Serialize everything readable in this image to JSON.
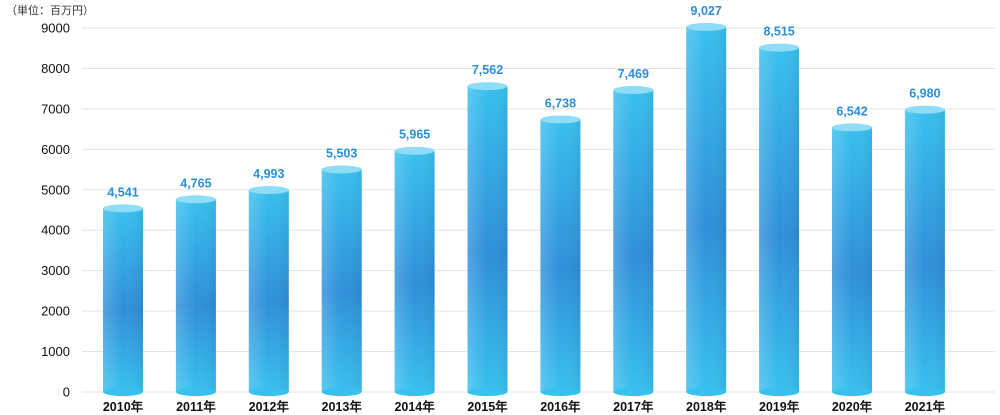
{
  "unit_label": "（単位：百万円）",
  "colors": {
    "bar_dark": "#2f8fd9",
    "bar_light": "#38c0ee",
    "bar_top": "#8fdcf6",
    "value_label": "#2b8fd6",
    "grid": "#e3e3e3",
    "axis_text": "#111111"
  },
  "chart_data": {
    "type": "bar",
    "categories": [
      "2010年",
      "2011年",
      "2012年",
      "2013年",
      "2014年",
      "2015年",
      "2016年",
      "2017年",
      "2018年",
      "2019年",
      "2020年",
      "2021年"
    ],
    "values": [
      4541,
      4765,
      4993,
      5503,
      5965,
      7562,
      6738,
      7469,
      9027,
      8515,
      6542,
      6980
    ],
    "value_labels": [
      "4,541",
      "4,765",
      "4,993",
      "5,503",
      "5,965",
      "7,562",
      "6,738",
      "7,469",
      "9,027",
      "8,515",
      "6,542",
      "6,980"
    ],
    "y_ticks": [
      "0",
      "1000",
      "2000",
      "3000",
      "4000",
      "5000",
      "6000",
      "7000",
      "8000",
      "9000"
    ],
    "ylim": [
      0,
      9000
    ],
    "grid": true,
    "legend": "none"
  }
}
